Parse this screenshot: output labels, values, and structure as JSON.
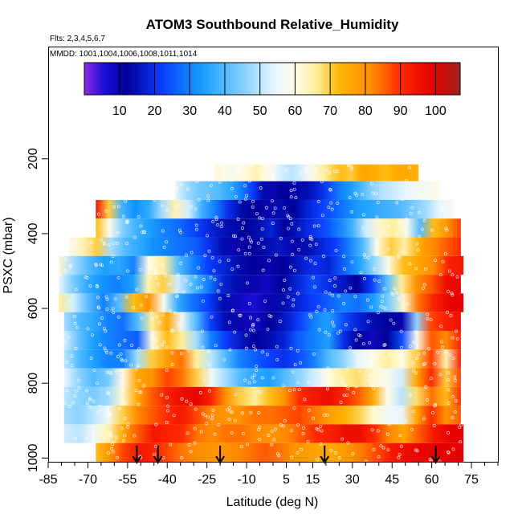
{
  "chart_data": {
    "type": "heatmap",
    "title": "ATOM3 Southbound Relative_Humidity",
    "subtitle_flights": "Flts: 2,3,4,5,6,7",
    "subtitle_dates": "MMDD: 1001,1004,1006,1008,1011,1014",
    "xlabel": "Latitude (deg N)",
    "ylabel": "PSXC (mbar)",
    "x_ticks": [
      -85,
      -70,
      -55,
      -40,
      -25,
      -10,
      5,
      15,
      30,
      45,
      60,
      75
    ],
    "x_range": [
      -85,
      85
    ],
    "y_ticks": [
      200,
      400,
      600,
      800,
      1000
    ],
    "y_range": [
      1010,
      -100
    ],
    "colorbar": {
      "variable": "Relative_Humidity",
      "range": [
        0,
        107
      ],
      "ticks": [
        10,
        20,
        30,
        40,
        50,
        60,
        70,
        80,
        90,
        100
      ],
      "color_stops": [
        {
          "value": 0,
          "color": "#8a2be2"
        },
        {
          "value": 6,
          "color": "#1a0dd6"
        },
        {
          "value": 12,
          "color": "#00009a"
        },
        {
          "value": 22,
          "color": "#0a3cff"
        },
        {
          "value": 33,
          "color": "#139bff"
        },
        {
          "value": 44,
          "color": "#77cbff"
        },
        {
          "value": 54,
          "color": "#e8f6ff"
        },
        {
          "value": 60,
          "color": "#fffbe6"
        },
        {
          "value": 66,
          "color": "#ffee9a"
        },
        {
          "value": 73,
          "color": "#ffb400"
        },
        {
          "value": 82,
          "color": "#ff8a00"
        },
        {
          "value": 90,
          "color": "#ff2a00"
        },
        {
          "value": 99,
          "color": "#e60000"
        },
        {
          "value": 107,
          "color": "#a0231e"
        }
      ]
    },
    "profile_arrow_latitudes": [
      -51.5,
      -43.5,
      -20,
      19.5,
      61.5
    ],
    "pressure_bands": [
      {
        "p_top": 215,
        "p_bottom": 260,
        "lat_start": -22,
        "lat_end": 55,
        "rh": [
          62,
          60,
          58,
          60,
          62,
          64,
          60,
          56,
          52,
          50,
          52,
          56,
          62,
          66,
          70,
          72,
          70,
          74,
          76,
          74,
          72,
          74,
          76,
          75,
          73
        ]
      },
      {
        "p_top": 260,
        "p_bottom": 310,
        "lat_start": -37,
        "lat_end": 63,
        "rh": [
          55,
          48,
          44,
          42,
          40,
          36,
          30,
          22,
          14,
          10,
          12,
          10,
          14,
          18,
          24,
          30,
          34,
          40,
          46,
          50,
          52,
          54,
          56,
          58,
          60
        ]
      },
      {
        "p_top": 310,
        "p_bottom": 360,
        "lat_start": -67,
        "lat_end": 68,
        "rh": [
          95,
          70,
          38,
          32,
          36,
          48,
          64,
          52,
          38,
          30,
          20,
          14,
          12,
          10,
          14,
          12,
          18,
          22,
          26,
          30,
          34,
          36,
          38,
          40,
          44,
          48,
          54,
          58
        ]
      },
      {
        "p_top": 360,
        "p_bottom": 410,
        "lat_start": -67,
        "lat_end": 71,
        "rh": [
          72,
          60,
          45,
          38,
          34,
          30,
          28,
          24,
          20,
          16,
          14,
          12,
          14,
          18,
          12,
          16,
          20,
          24,
          30,
          38,
          52,
          62,
          66,
          58,
          40,
          72,
          80,
          88
        ]
      },
      {
        "p_top": 410,
        "p_bottom": 460,
        "lat_start": -77,
        "lat_end": 71,
        "rh": [
          58,
          64,
          70,
          48,
          40,
          36,
          32,
          30,
          28,
          26,
          20,
          14,
          10,
          12,
          14,
          16,
          10,
          14,
          18,
          22,
          30,
          40,
          60,
          70,
          65,
          75,
          82,
          86,
          90
        ]
      },
      {
        "p_top": 460,
        "p_bottom": 510,
        "lat_start": -81,
        "lat_end": 72,
        "rh": [
          62,
          48,
          40,
          34,
          36,
          30,
          60,
          66,
          40,
          30,
          22,
          18,
          14,
          12,
          10,
          12,
          16,
          20,
          18,
          26,
          34,
          46,
          60,
          72,
          76,
          82,
          92,
          94
        ]
      },
      {
        "p_top": 510,
        "p_bottom": 560,
        "lat_start": -81,
        "lat_end": 71,
        "rh": [
          54,
          44,
          36,
          32,
          30,
          34,
          64,
          70,
          52,
          40,
          30,
          18,
          14,
          10,
          8,
          12,
          18,
          24,
          20,
          16,
          12,
          22,
          40,
          66,
          80,
          86,
          96,
          98
        ]
      },
      {
        "p_top": 560,
        "p_bottom": 610,
        "lat_start": -81,
        "lat_end": 72,
        "rh": [
          66,
          52,
          40,
          30,
          40,
          72,
          80,
          58,
          36,
          28,
          22,
          14,
          8,
          6,
          10,
          14,
          18,
          22,
          26,
          30,
          28,
          34,
          44,
          62,
          84,
          92,
          98,
          99
        ]
      },
      {
        "p_top": 610,
        "p_bottom": 660,
        "lat_start": -79,
        "lat_end": 71,
        "rh": [
          48,
          40,
          36,
          30,
          28,
          40,
          66,
          76,
          56,
          40,
          22,
          14,
          10,
          8,
          12,
          16,
          22,
          30,
          34,
          24,
          18,
          14,
          12,
          10,
          46,
          88,
          92,
          96
        ]
      },
      {
        "p_top": 660,
        "p_bottom": 710,
        "lat_start": -79,
        "lat_end": 71,
        "rh": [
          52,
          42,
          34,
          30,
          28,
          26,
          60,
          72,
          66,
          48,
          30,
          22,
          16,
          12,
          14,
          18,
          26,
          30,
          34,
          20,
          12,
          8,
          12,
          24,
          58,
          86,
          82,
          92
        ]
      },
      {
        "p_top": 710,
        "p_bottom": 760,
        "lat_start": -79,
        "lat_end": 71,
        "rh": [
          50,
          40,
          34,
          30,
          30,
          48,
          70,
          78,
          84,
          66,
          50,
          40,
          30,
          26,
          22,
          20,
          24,
          30,
          40,
          46,
          54,
          60,
          66,
          60,
          70,
          88,
          64,
          92
        ]
      },
      {
        "p_top": 760,
        "p_bottom": 810,
        "lat_start": -79,
        "lat_end": 71,
        "rh": [
          54,
          46,
          40,
          44,
          60,
          76,
          80,
          88,
          84,
          70,
          56,
          48,
          40,
          36,
          34,
          40,
          46,
          52,
          60,
          66,
          68,
          62,
          58,
          52,
          76,
          90,
          70,
          88
        ]
      },
      {
        "p_top": 810,
        "p_bottom": 860,
        "lat_start": -79,
        "lat_end": 71,
        "rh": [
          50,
          46,
          44,
          48,
          62,
          76,
          86,
          92,
          96,
          98,
          92,
          80,
          70,
          66,
          72,
          80,
          90,
          94,
          96,
          92,
          86,
          76,
          60,
          50,
          68,
          84,
          72,
          90
        ]
      },
      {
        "p_top": 860,
        "p_bottom": 910,
        "lat_start": -79,
        "lat_end": 71,
        "rh": [
          48,
          46,
          50,
          56,
          70,
          82,
          86,
          90,
          94,
          88,
          82,
          80,
          80,
          84,
          84,
          86,
          88,
          84,
          78,
          74,
          70,
          62,
          56,
          54,
          76,
          90,
          80,
          86
        ]
      },
      {
        "p_top": 910,
        "p_bottom": 960,
        "lat_start": -79,
        "lat_end": 72,
        "rh": [
          52,
          50,
          56,
          64,
          76,
          86,
          94,
          92,
          90,
          84,
          82,
          84,
          84,
          82,
          80,
          82,
          86,
          90,
          92,
          96,
          96,
          90,
          82,
          76,
          86,
          94,
          98,
          99
        ]
      },
      {
        "p_top": 960,
        "p_bottom": 1010,
        "lat_start": -67,
        "lat_end": 72,
        "rh": [
          72,
          80,
          88,
          94,
          92,
          88,
          84,
          82,
          80,
          80,
          82,
          84,
          86,
          84,
          80,
          78,
          76,
          76,
          80,
          84,
          88,
          94,
          96,
          98,
          99,
          99,
          99
        ]
      }
    ]
  }
}
